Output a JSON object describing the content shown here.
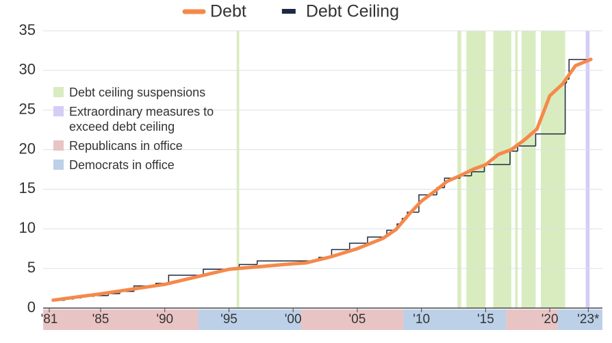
{
  "chart_data": {
    "type": "line",
    "xlim": [
      1980.52,
      2024.1
    ],
    "xticks": [
      {
        "value": 1981,
        "label": "'81"
      },
      {
        "value": 1985,
        "label": "'85"
      },
      {
        "value": 1990,
        "label": "'90"
      },
      {
        "value": 1995,
        "label": "'95"
      },
      {
        "value": 2000,
        "label": "'00"
      },
      {
        "value": 2005,
        "label": "'05"
      },
      {
        "value": 2010,
        "label": "'10"
      },
      {
        "value": 2015,
        "label": "'15"
      },
      {
        "value": 2020,
        "label": "'20"
      },
      {
        "value": 2023,
        "label": "'23*"
      }
    ],
    "ylim": [
      0,
      35
    ],
    "yticks": [
      0,
      5,
      10,
      15,
      20,
      25,
      30,
      35
    ],
    "grid": true,
    "series": [
      {
        "name": "Debt",
        "color": "#f5894a",
        "style": "line",
        "x": [
          1981.3,
          1985,
          1990,
          1995,
          2000,
          2001,
          2003,
          2005,
          2007,
          2008,
          2009,
          2010,
          2011,
          2012,
          2013,
          2014,
          2015,
          2016,
          2017,
          2018,
          2019,
          2020,
          2021,
          2022,
          2023.2
        ],
        "values": [
          1.0,
          1.8,
          3.0,
          4.9,
          5.6,
          5.7,
          6.5,
          7.5,
          8.8,
          9.9,
          11.8,
          13.5,
          14.7,
          16.0,
          16.7,
          17.5,
          18.1,
          19.4,
          20.0,
          21.2,
          22.6,
          26.8,
          28.3,
          30.6,
          31.4
        ]
      },
      {
        "name": "Debt Ceiling",
        "color": "#1b2a41",
        "style": "step",
        "x": [
          1981.4,
          1982.2,
          1982.9,
          1983.5,
          1984.5,
          1985.6,
          1986.5,
          1987.6,
          1989.3,
          1990.3,
          1993.0,
          1995.8,
          1997.2,
          2002.0,
          2003.0,
          2004.4,
          2005.8,
          2007.3,
          2008.1,
          2008.5,
          2008.9,
          2009.8,
          2011.2,
          2011.8,
          2013.0,
          2013.9,
          2014.9,
          2016.9,
          2017.5,
          2018.9,
          2021.2,
          2021.3,
          2021.5,
          2023.3
        ],
        "values": [
          0.985,
          1.143,
          1.29,
          1.49,
          1.573,
          1.824,
          2.111,
          2.8,
          3.123,
          4.145,
          4.9,
          5.5,
          5.95,
          6.4,
          7.384,
          8.184,
          8.965,
          9.815,
          10.615,
          11.315,
          12.104,
          14.294,
          15.194,
          16.394,
          16.699,
          17.212,
          18.113,
          19.809,
          20.456,
          21.988,
          28.401,
          28.881,
          31.381,
          31.381
        ]
      }
    ],
    "shading": [
      {
        "name": "Debt ceiling suspensions",
        "color": "#d9ecbf",
        "region": "plot",
        "spans": [
          [
            1995.6,
            1995.8
          ],
          [
            2012.8,
            2013.1
          ],
          [
            2013.5,
            2015.0
          ],
          [
            2015.6,
            2017.0
          ],
          [
            2017.3,
            2017.5
          ],
          [
            2017.8,
            2018.9
          ],
          [
            2019.3,
            2021.2
          ]
        ]
      },
      {
        "name": "Extraordinary measures to exceed debt ceiling",
        "color": "#d5cdf5",
        "region": "plot",
        "spans": [
          [
            2022.8,
            2023.1
          ]
        ]
      },
      {
        "name": "Republicans in office",
        "color": "#e9c4c4",
        "region": "x-axis",
        "spans": [
          [
            1980.52,
            1992.6
          ],
          [
            2000.6,
            2008.6
          ],
          [
            2016.6,
            2020.6
          ]
        ]
      },
      {
        "name": "Democrats in office",
        "color": "#bcd0e8",
        "region": "x-axis",
        "spans": [
          [
            1992.6,
            2000.6
          ],
          [
            2008.6,
            2016.6
          ],
          [
            2020.6,
            2024.1
          ]
        ]
      }
    ]
  }
}
